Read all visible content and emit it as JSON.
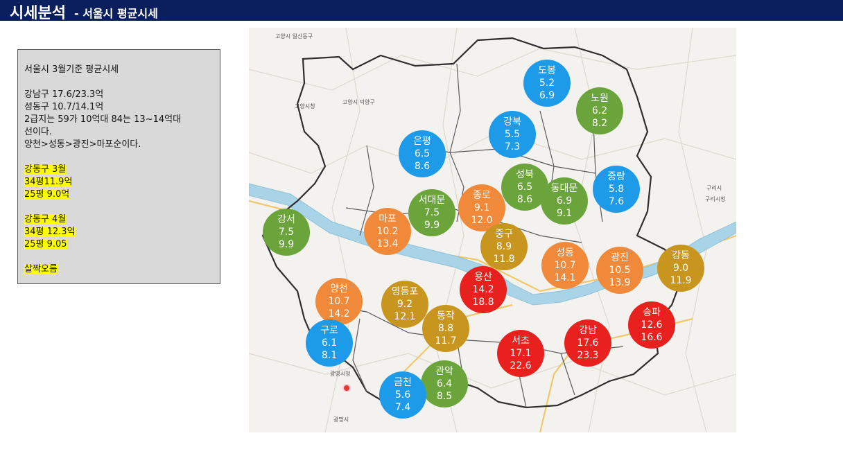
{
  "header": {
    "title": "시세분석",
    "subtitle": "- 서울시 평균시세"
  },
  "notes": {
    "title": "서울시 3월기준 평균시세",
    "lines": [
      "강남구 17.6/23.3억",
      "성동구 10.7/14.1억",
      "2급지는 59가 10억대 84는 13~14억대",
      "선이다.",
      "양천>성동>광진>마포순이다."
    ],
    "march": [
      "강동구 3월",
      "34평11.9억",
      "25평 9.0억"
    ],
    "april": [
      "강동구 4월",
      "34평 12.3억",
      "25평 9.05"
    ],
    "conclusion": "살짝오름"
  },
  "map_labels": [
    "고양시 일산동구",
    "고양시 덕양구",
    "고양시청",
    "구리시",
    "구리시청",
    "광명시청",
    "광명시"
  ],
  "colors": {
    "blue": "#1e9be8",
    "green": "#6aa43a",
    "orange": "#f08a3a",
    "gold": "#c8951e",
    "red": "#e8201e"
  },
  "districts": [
    {
      "name": "도봉",
      "v1": "5.2",
      "v2": "6.9",
      "color": "blue"
    },
    {
      "name": "노원",
      "v1": "6.2",
      "v2": "8.2",
      "color": "green"
    },
    {
      "name": "강북",
      "v1": "5.5",
      "v2": "7.3",
      "color": "blue"
    },
    {
      "name": "은평",
      "v1": "6.5",
      "v2": "8.6",
      "color": "blue"
    },
    {
      "name": "성북",
      "v1": "6.5",
      "v2": "8.6",
      "color": "green"
    },
    {
      "name": "중랑",
      "v1": "5.8",
      "v2": "7.6",
      "color": "blue"
    },
    {
      "name": "종로",
      "v1": "9.1",
      "v2": "12.0",
      "color": "orange"
    },
    {
      "name": "동대문",
      "v1": "6.9",
      "v2": "9.1",
      "color": "green"
    },
    {
      "name": "서대문",
      "v1": "7.5",
      "v2": "9.9",
      "color": "green"
    },
    {
      "name": "마포",
      "v1": "10.2",
      "v2": "13.4",
      "color": "orange"
    },
    {
      "name": "강서",
      "v1": "7.5",
      "v2": "9.9",
      "color": "green"
    },
    {
      "name": "중구",
      "v1": "8.9",
      "v2": "11.8",
      "color": "gold"
    },
    {
      "name": "성동",
      "v1": "10.7",
      "v2": "14.1",
      "color": "orange"
    },
    {
      "name": "광진",
      "v1": "10.5",
      "v2": "13.9",
      "color": "orange"
    },
    {
      "name": "강동",
      "v1": "9.0",
      "v2": "11.9",
      "color": "gold"
    },
    {
      "name": "용산",
      "v1": "14.2",
      "v2": "18.8",
      "color": "red"
    },
    {
      "name": "양천",
      "v1": "10.7",
      "v2": "14.2",
      "color": "orange"
    },
    {
      "name": "영등포",
      "v1": "9.2",
      "v2": "12.1",
      "color": "gold"
    },
    {
      "name": "동작",
      "v1": "8.8",
      "v2": "11.7",
      "color": "gold"
    },
    {
      "name": "송파",
      "v1": "12.6",
      "v2": "16.6",
      "color": "red"
    },
    {
      "name": "구로",
      "v1": "6.1",
      "v2": "8.1",
      "color": "blue"
    },
    {
      "name": "서초",
      "v1": "17.1",
      "v2": "22.6",
      "color": "red"
    },
    {
      "name": "강남",
      "v1": "17.6",
      "v2": "23.3",
      "color": "red"
    },
    {
      "name": "관악",
      "v1": "6.4",
      "v2": "8.5",
      "color": "green"
    },
    {
      "name": "금천",
      "v1": "5.6",
      "v2": "7.4",
      "color": "blue"
    }
  ]
}
